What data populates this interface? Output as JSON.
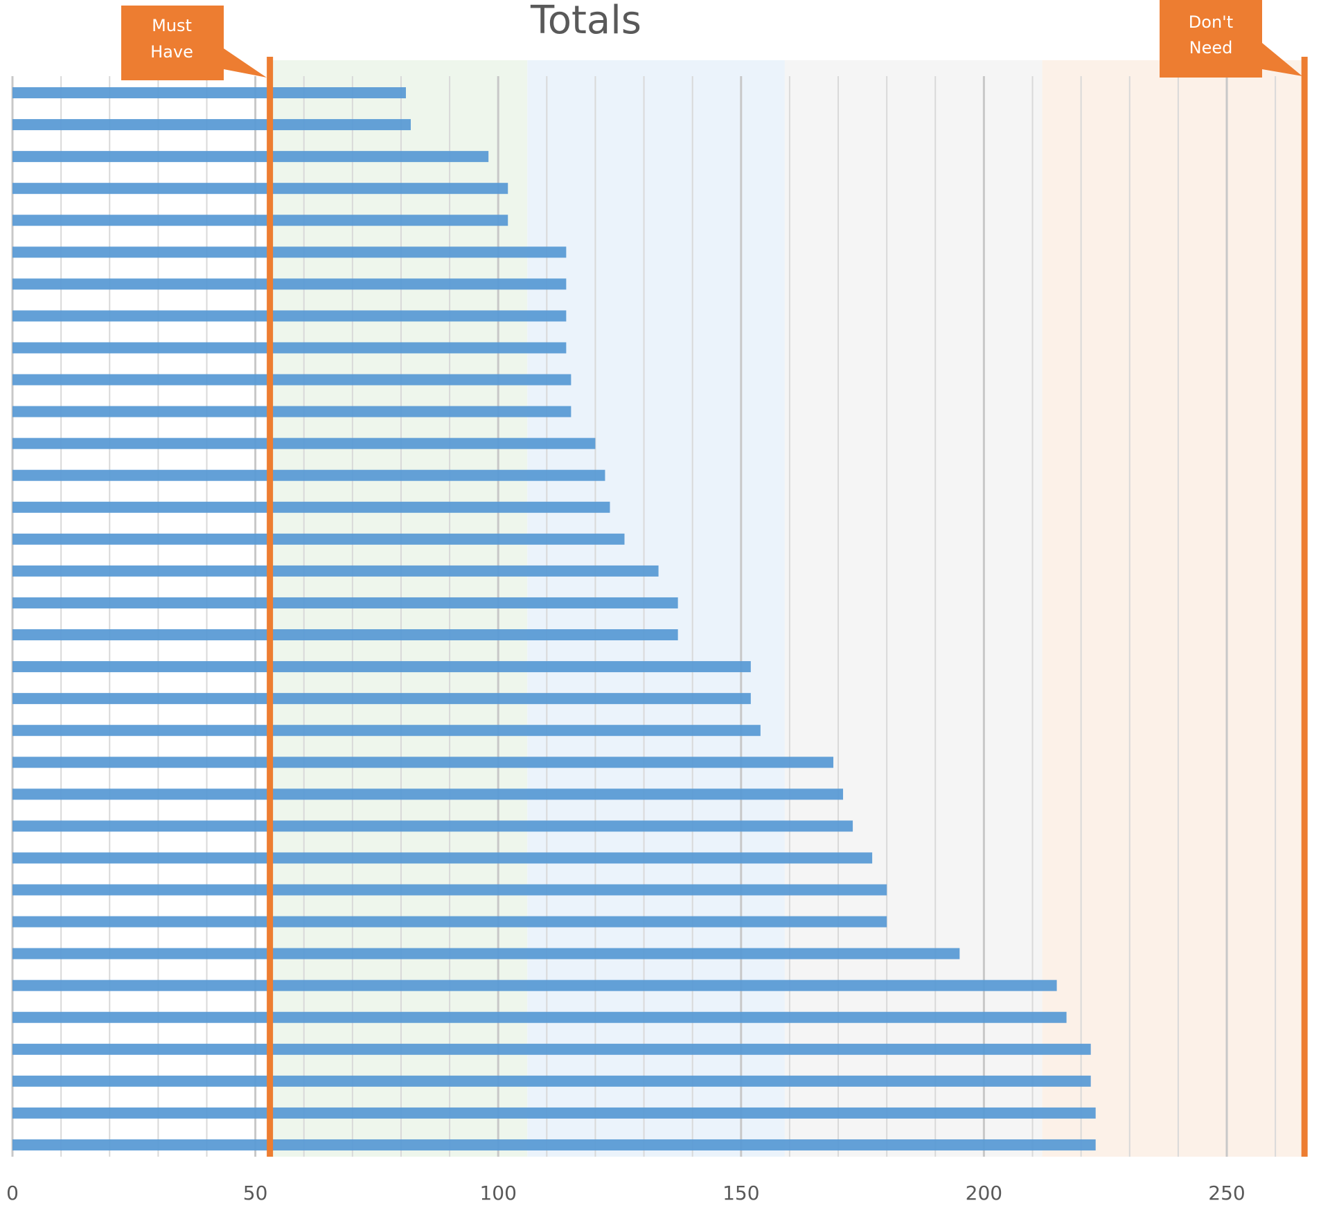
{
  "chart_data": {
    "type": "bar",
    "orientation": "horizontal",
    "title": "Totals",
    "xlabel": "",
    "ylabel": "",
    "xlim": [
      0,
      266
    ],
    "x_ticks": [
      0,
      50,
      100,
      150,
      200,
      250
    ],
    "minor_gridline_step": 10,
    "grid": true,
    "legend": "none",
    "values": [
      81,
      82,
      98,
      102,
      102,
      114,
      114,
      114,
      114,
      115,
      115,
      120,
      122,
      123,
      126,
      133,
      137,
      137,
      152,
      152,
      154,
      169,
      171,
      173,
      177,
      180,
      180,
      195,
      215,
      217,
      222,
      222,
      223,
      223
    ],
    "bands": [
      {
        "from": 53,
        "to": 106,
        "color": "#eef6ec"
      },
      {
        "from": 106,
        "to": 159,
        "color": "#ebf3fb"
      },
      {
        "from": 159,
        "to": 212,
        "color": "#f5f5f5"
      },
      {
        "from": 212,
        "to": 266,
        "color": "#fcf1e8"
      }
    ],
    "markers": [
      {
        "value": 53,
        "label": "Must Have",
        "label_lines": [
          "Must",
          "Have"
        ]
      },
      {
        "value": 266,
        "label": "Don't Need",
        "label_lines": [
          "Don't",
          "Need"
        ]
      }
    ],
    "colors": {
      "bar": "#5b9bd5",
      "marker": "#ed7d31",
      "gridline": "#d9d9d9",
      "title": "#595959",
      "tick_label": "#595959",
      "label_text": "#ffffff"
    }
  }
}
